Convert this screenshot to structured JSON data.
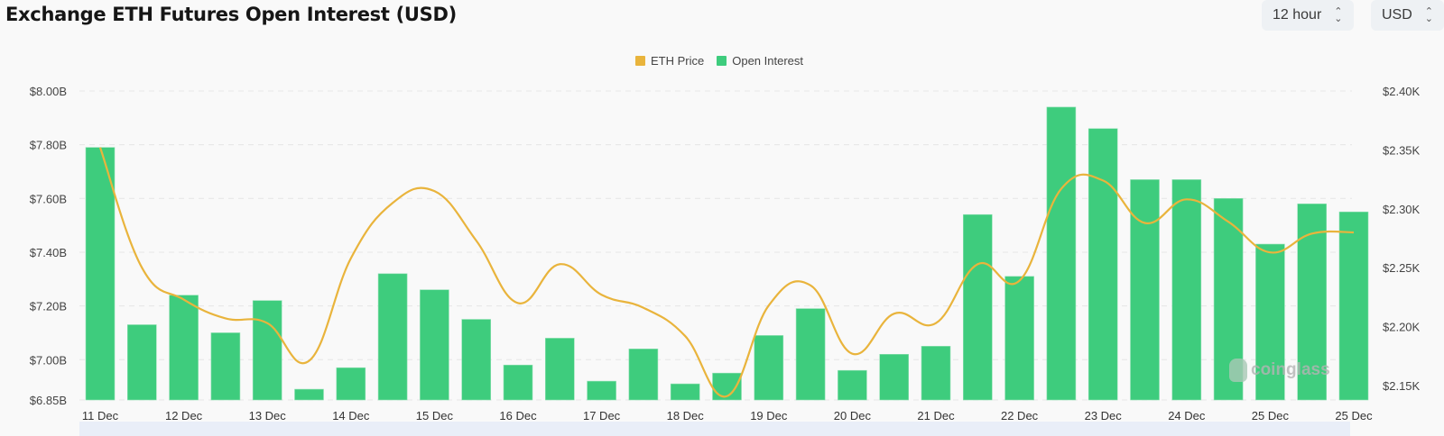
{
  "header": {
    "title": "Exchange ETH Futures Open Interest (USD)",
    "interval_select": {
      "value": "12 hour",
      "icon": "up-down-chevron-icon"
    },
    "currency_select": {
      "value": "USD",
      "icon": "up-down-chevron-icon"
    }
  },
  "legend": [
    {
      "label": "ETH Price",
      "color": "#e9b43c"
    },
    {
      "label": "Open Interest",
      "color": "#3ecc7d"
    }
  ],
  "watermark": "coinglass",
  "chart_data": {
    "type": "bar+line",
    "title": "Exchange ETH Futures Open Interest (USD)",
    "x_tick_labels": [
      "11 Dec",
      "12 Dec",
      "13 Dec",
      "14 Dec",
      "15 Dec",
      "16 Dec",
      "17 Dec",
      "18 Dec",
      "19 Dec",
      "20 Dec",
      "21 Dec",
      "22 Dec",
      "23 Dec",
      "24 Dec",
      "25 Dec",
      "25 Dec"
    ],
    "interval": "12 hour",
    "left_axis": {
      "label": "Open Interest",
      "ticks": [
        "$6.85B",
        "$7.00B",
        "$7.20B",
        "$7.40B",
        "$7.60B",
        "$7.80B",
        "$8.00B"
      ],
      "range": [
        6.85,
        8.0
      ],
      "unit": "B USD"
    },
    "right_axis": {
      "label": "ETH Price",
      "ticks": [
        "$2.15K",
        "$2.20K",
        "$2.25K",
        "$2.30K",
        "$2.35K",
        "$2.40K"
      ],
      "range": [
        2.125,
        2.4
      ],
      "unit": "K USD"
    },
    "grid": true,
    "legend_position": "top-center",
    "series": [
      {
        "name": "Open Interest",
        "type": "bar",
        "axis": "left",
        "color": "#3ecc7d",
        "values": [
          7.79,
          7.13,
          7.24,
          7.1,
          7.22,
          6.89,
          6.97,
          7.32,
          7.26,
          7.15,
          6.98,
          7.08,
          6.92,
          7.04,
          6.91,
          6.95,
          7.09,
          7.19,
          6.96,
          7.02,
          7.05,
          7.54,
          7.31,
          7.94,
          7.86,
          7.67,
          7.67,
          7.6,
          7.43,
          7.58,
          7.55
        ]
      },
      {
        "name": "ETH Price",
        "type": "line",
        "axis": "right",
        "color": "#e9b43c",
        "values": [
          2.352,
          2.25,
          2.223,
          2.207,
          2.203,
          2.171,
          2.258,
          2.305,
          2.315,
          2.273,
          2.22,
          2.253,
          2.227,
          2.216,
          2.192,
          2.141,
          2.218,
          2.235,
          2.177,
          2.211,
          2.203,
          2.253,
          2.239,
          2.317,
          2.324,
          2.288,
          2.308,
          2.289,
          2.263,
          2.279,
          2.28
        ]
      }
    ]
  }
}
